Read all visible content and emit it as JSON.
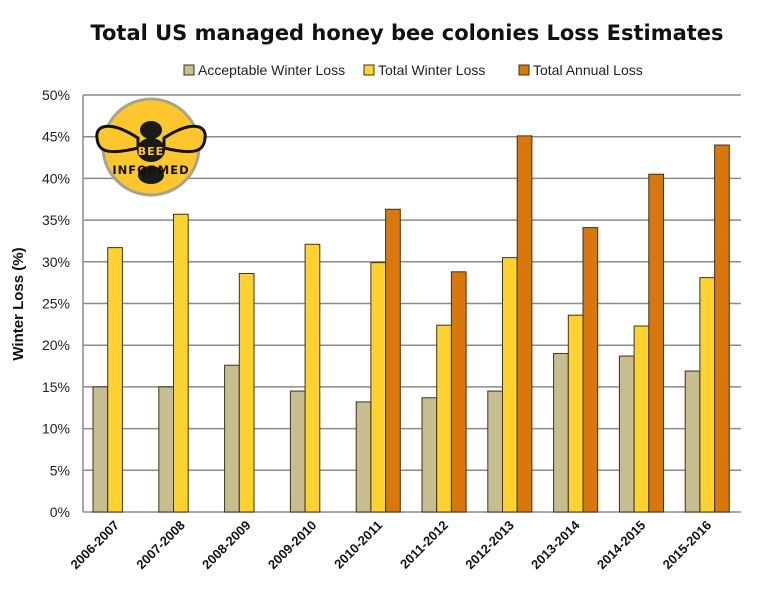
{
  "chart_data": {
    "type": "bar",
    "title": "Total US managed honey bee colonies Loss Estimates",
    "xlabel": "",
    "ylabel": "Winter Loss (%)",
    "ylim": [
      0,
      50
    ],
    "ytick_step": 5,
    "ytick_labels": [
      "0%",
      "5%",
      "10%",
      "15%",
      "20%",
      "25%",
      "30%",
      "35%",
      "40%",
      "45%",
      "50%"
    ],
    "grid": true,
    "legend_position": "top",
    "categories": [
      "2006-2007",
      "2007-2008",
      "2008-2009",
      "2009-2010",
      "2010-2011",
      "2011-2012",
      "2012-2013",
      "2013-2014",
      "2014-2015",
      "2015-2016"
    ],
    "series": [
      {
        "name": "Acceptable Winter Loss",
        "color": "#c8bd8f",
        "values": [
          15.0,
          15.0,
          17.6,
          14.5,
          13.2,
          13.7,
          14.5,
          19.0,
          18.7,
          16.9
        ]
      },
      {
        "name": "Total Winter Loss",
        "color": "#ffd230",
        "values": [
          31.7,
          35.7,
          28.6,
          32.1,
          29.9,
          22.4,
          30.5,
          23.6,
          22.3,
          28.1
        ]
      },
      {
        "name": "Total Annual Loss",
        "color": "#d9760c",
        "values": [
          null,
          null,
          null,
          null,
          36.3,
          28.8,
          45.1,
          34.1,
          40.5,
          44.0
        ]
      }
    ]
  },
  "logo": {
    "top_text": "BEE",
    "bottom_text": "INFORMED",
    "color": "#fdc52e"
  }
}
